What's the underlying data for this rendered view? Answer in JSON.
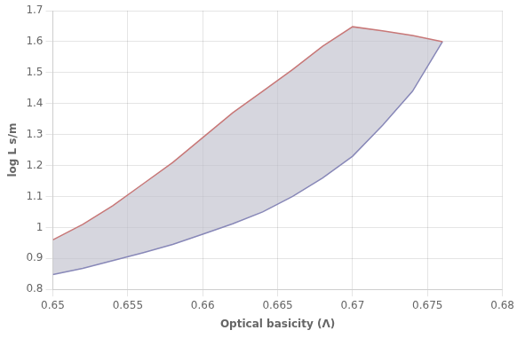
{
  "chart_data": {
    "type": "area",
    "xlabel": "Optical basicity (Λ)",
    "ylabel": "log L s/m",
    "x": [
      0.65,
      0.652,
      0.654,
      0.656,
      0.658,
      0.66,
      0.662,
      0.664,
      0.666,
      0.668,
      0.67,
      0.672,
      0.674,
      0.676
    ],
    "series": [
      {
        "color": "#c87878",
        "values": [
          0.96,
          1.01,
          1.07,
          1.14,
          1.21,
          1.29,
          1.37,
          1.44,
          1.51,
          1.585,
          1.648,
          1.635,
          1.62,
          1.6
        ]
      },
      {
        "color": "#8888b8",
        "values": [
          0.848,
          0.868,
          0.893,
          0.918,
          0.945,
          0.978,
          1.012,
          1.05,
          1.1,
          1.16,
          1.23,
          1.33,
          1.44,
          1.6
        ]
      }
    ],
    "xlim": [
      0.65,
      0.68
    ],
    "ylim": [
      0.8,
      1.7
    ],
    "xticks": [
      0.65,
      0.655,
      0.66,
      0.665,
      0.67,
      0.675,
      0.68
    ],
    "yticks": [
      0.8,
      0.9,
      1,
      1.1,
      1.2,
      1.3,
      1.4,
      1.5,
      1.6,
      1.7
    ],
    "grid": true
  }
}
